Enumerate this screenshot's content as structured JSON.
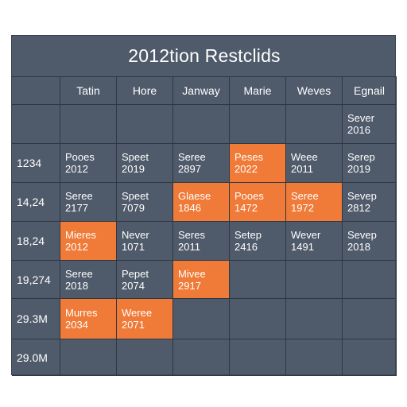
{
  "title": "2012tion Restclids",
  "headers": [
    "",
    "Tatin",
    "Hore",
    "Janway",
    "Marie",
    "Weves",
    "Egnail"
  ],
  "row_labels": [
    "",
    "1234",
    "14,24",
    "18,24",
    "19,274",
    "29.3M",
    "29.0M"
  ],
  "cells": [
    [
      null,
      null,
      null,
      null,
      null,
      {
        "l1": "Sever",
        "l2": "2016",
        "hi": false
      }
    ],
    [
      {
        "l1": "Pooes",
        "l2": "2012",
        "hi": false
      },
      {
        "l1": "Speet",
        "l2": "2019",
        "hi": false
      },
      {
        "l1": "Seree",
        "l2": "2897",
        "hi": false
      },
      {
        "l1": "Peses",
        "l2": "2022",
        "hi": true
      },
      {
        "l1": "Weee",
        "l2": "2011",
        "hi": false
      },
      {
        "l1": "Serep",
        "l2": "2019",
        "hi": false
      }
    ],
    [
      {
        "l1": "Seree",
        "l2": "2177",
        "hi": false
      },
      {
        "l1": "Speet",
        "l2": "7079",
        "hi": false
      },
      {
        "l1": "Glaese",
        "l2": "1846",
        "hi": true
      },
      {
        "l1": "Pooes",
        "l2": "1472",
        "hi": true
      },
      {
        "l1": "Seree",
        "l2": "1972",
        "hi": true
      },
      {
        "l1": "Sevep",
        "l2": "2812",
        "hi": false
      }
    ],
    [
      {
        "l1": "Mieres",
        "l2": "2012",
        "hi": true
      },
      {
        "l1": "Never",
        "l2": "1071",
        "hi": false
      },
      {
        "l1": "Seres",
        "l2": "2011",
        "hi": false
      },
      {
        "l1": "Setep",
        "l2": "2416",
        "hi": false
      },
      {
        "l1": "Wever",
        "l2": "1491",
        "hi": false
      },
      {
        "l1": "Sevep",
        "l2": "2018",
        "hi": false
      }
    ],
    [
      {
        "l1": "Seree",
        "l2": "2018",
        "hi": false
      },
      {
        "l1": "Pepet",
        "l2": "2074",
        "hi": false
      },
      {
        "l1": "Mivee",
        "l2": "2917",
        "hi": true
      },
      null,
      null,
      null
    ],
    [
      {
        "l1": "Murres",
        "l2": "2034",
        "hi": true
      },
      {
        "l1": "Weree",
        "l2": "2071",
        "hi": true
      },
      null,
      null,
      null,
      null
    ],
    [
      null,
      null,
      null,
      null,
      null,
      null
    ]
  ],
  "colors": {
    "background": "#4f5a6a",
    "highlight": "#f07a37",
    "grid_line": "#2f3742",
    "text": "#ffffff"
  }
}
